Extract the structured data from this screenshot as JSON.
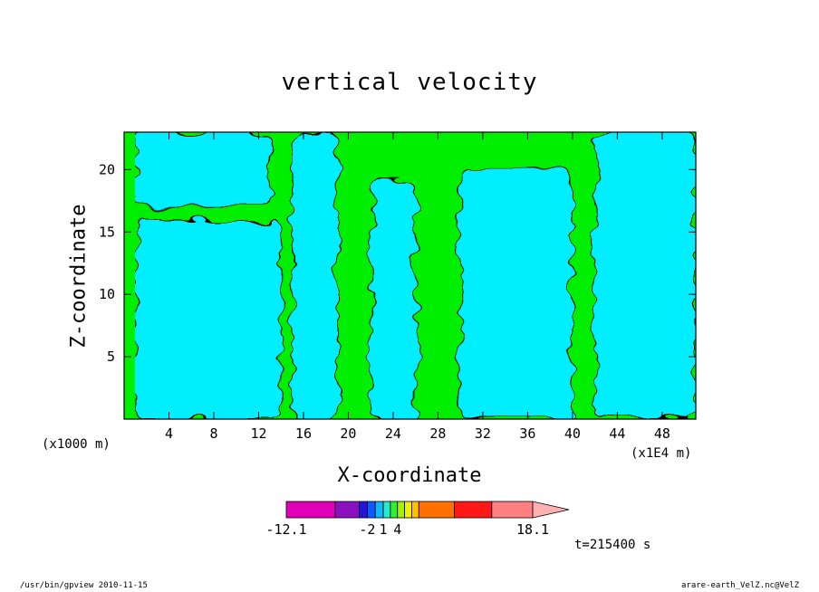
{
  "chart_data": {
    "type": "heatmap",
    "title": "vertical velocity",
    "xlabel": "X-coordinate",
    "ylabel": "Z-coordinate",
    "xunit": "(x1E4 m)",
    "yunit": "(x1000 m)",
    "xlim": [
      0,
      51
    ],
    "ylim": [
      0,
      23
    ],
    "xticks": [
      4,
      8,
      12,
      16,
      20,
      24,
      28,
      32,
      36,
      40,
      44,
      48
    ],
    "yticks": [
      5,
      10,
      15,
      20
    ],
    "colorbar": {
      "colors": [
        "#e000b8",
        "#8a10c0",
        "#2a10e0",
        "#1058ff",
        "#10b8ff",
        "#28e8d0",
        "#30f030",
        "#a8f000",
        "#f0f000",
        "#ffc000",
        "#ff7000",
        "#ff1818",
        "#ff8080",
        "#ffb0b0"
      ],
      "labels": [
        "-12.1",
        "-2",
        "1",
        "4",
        "18.1"
      ],
      "extend": "max"
    },
    "field_colors": {
      "negative": "#00eeff",
      "positive": "#00ee00"
    },
    "cyan_regions": [
      {
        "region": "upper-left",
        "x": [
          1,
          13
        ],
        "z": [
          17,
          23
        ]
      },
      {
        "region": "lower-left",
        "x": [
          1,
          14
        ],
        "z": [
          0,
          16
        ]
      },
      {
        "region": "center-left",
        "x": [
          15,
          19
        ],
        "z": [
          0,
          23
        ]
      },
      {
        "region": "center",
        "x": [
          22,
          26
        ],
        "z": [
          0,
          19
        ]
      },
      {
        "region": "center-right",
        "x": [
          30,
          40
        ],
        "z": [
          0,
          20
        ]
      },
      {
        "region": "right",
        "x": [
          42,
          51
        ],
        "z": [
          0,
          23
        ]
      }
    ],
    "time_label": "t=215400 s"
  },
  "footer": {
    "left": "/usr/bin/gpview   2010-11-15",
    "right": "arare-earth_VelZ.nc@VelZ"
  }
}
